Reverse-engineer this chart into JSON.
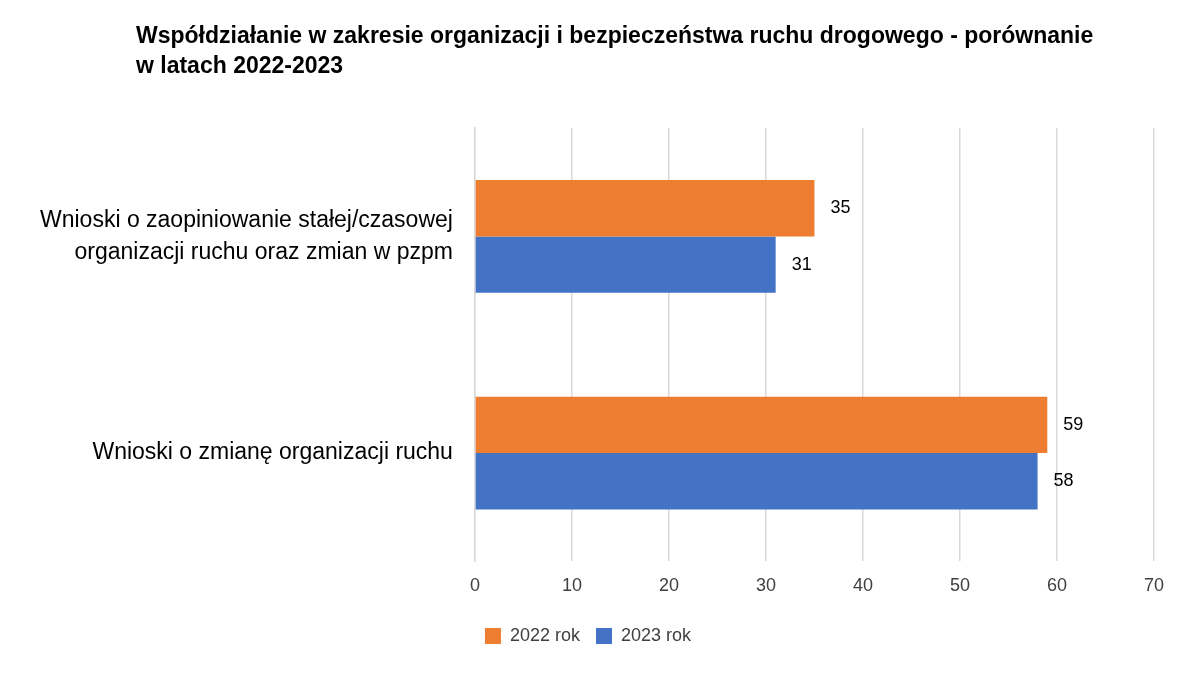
{
  "chart_data": {
    "type": "bar",
    "orientation": "horizontal",
    "title": "Współdziałanie w zakresie organizacji i bezpieczeństwa ruchu drogowego - porównanie w latach 2022-2023",
    "categories": [
      "Wnioski o zaopiniowanie stałej/czasowej organizacji ruchu oraz zmian w pzpm",
      "Wnioski o zmianę organizacji ruchu"
    ],
    "series": [
      {
        "name": "2022 rok",
        "color": "#ed7d31",
        "values": [
          35,
          59
        ]
      },
      {
        "name": "2023 rok",
        "color": "#4472c4",
        "values": [
          31,
          58
        ]
      }
    ],
    "xlim": [
      0,
      70
    ],
    "xticks": [
      0,
      10,
      20,
      30,
      40,
      50,
      60,
      70
    ],
    "grid": "x",
    "legend": "bottom",
    "data_labels": true
  }
}
